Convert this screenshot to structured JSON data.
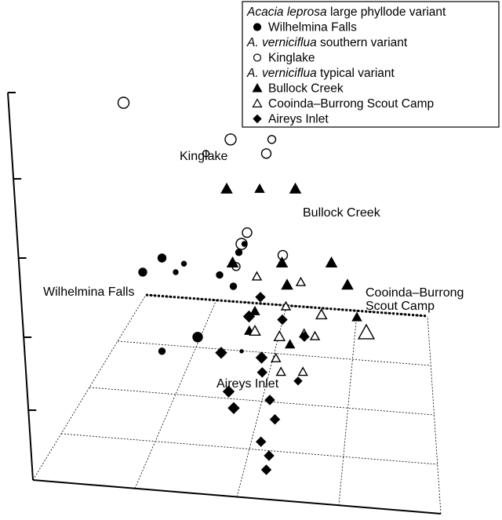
{
  "chart_data": {
    "type": "scatter",
    "projection": "3d-ordination",
    "grid": true,
    "legend_position": "top-right",
    "legend": [
      {
        "group_title": "Acacia leprosa",
        "group_suffix": " large phyllode variant",
        "entries": [
          {
            "symbol": "filled-circle",
            "label": "Wilhelmina Falls"
          }
        ]
      },
      {
        "group_title": "A. verniciflua",
        "group_suffix": " southern variant",
        "entries": [
          {
            "symbol": "open-circle",
            "label": "Kinglake"
          }
        ]
      },
      {
        "group_title": "A. verniciflua",
        "group_suffix": " typical variant",
        "entries": [
          {
            "symbol": "filled-triangle",
            "label": "Bullock Creek"
          },
          {
            "symbol": "open-triangle",
            "label": "Cooinda–Burrong Scout Camp"
          },
          {
            "symbol": "filled-diamond",
            "label": "Aireys Inlet"
          }
        ]
      }
    ],
    "annotations": [
      {
        "id": "kinglake",
        "lines": [
          "Kinglake"
        ]
      },
      {
        "id": "bullock",
        "lines": [
          "Bullock Creek"
        ]
      },
      {
        "id": "wilhelmina",
        "lines": [
          "Wilhelmina Falls"
        ]
      },
      {
        "id": "cooinda",
        "lines": [
          "Cooinda–Burrong",
          "Scout Camp"
        ]
      },
      {
        "id": "aireys",
        "lines": [
          "Aireys Inlet"
        ]
      }
    ],
    "series": [
      {
        "name": "Kinglake",
        "symbol": "open-circle",
        "points": [
          [
            0.05,
            0.9,
            0.0,
            7
          ],
          [
            0.44,
            0.77,
            0.0,
            7
          ],
          [
            0.59,
            0.77,
            0.0,
            5
          ],
          [
            0.35,
            0.72,
            0.0,
            4
          ],
          [
            0.57,
            0.72,
            0.0,
            6
          ],
          [
            0.5,
            0.44,
            0.0,
            6
          ],
          [
            0.48,
            0.4,
            0.0,
            7
          ],
          [
            0.46,
            0.32,
            0.0,
            5
          ],
          [
            0.63,
            0.36,
            0.0,
            6
          ]
        ]
      },
      {
        "name": "Wilhelmina Falls",
        "symbol": "filled-circle",
        "points": [
          [
            0.27,
            0.33,
            0.0,
            3
          ],
          [
            0.32,
            0.07,
            0.0,
            6
          ],
          [
            0.45,
            0.25,
            0.0,
            4
          ],
          [
            0.49,
            0.4,
            0.0,
            3
          ],
          [
            0.19,
            0.35,
            0.0,
            5
          ],
          [
            0.24,
            0.3,
            0.0,
            3
          ],
          [
            0.47,
            0.37,
            0.0,
            4
          ],
          [
            0.12,
            0.3,
            0.0,
            5
          ],
          [
            0.4,
            0.29,
            0.0,
            4
          ],
          [
            0.19,
            0.02,
            0.0,
            4
          ],
          [
            0.48,
            0.02,
            0.0,
            2
          ]
        ]
      },
      {
        "name": "Bullock Creek",
        "symbol": "filled-triangle",
        "points": [
          [
            0.4,
            0.62,
            0.9,
            6
          ],
          [
            0.52,
            0.62,
            0.9,
            5
          ],
          [
            0.65,
            0.62,
            0.9,
            6
          ],
          [
            0.43,
            0.35,
            0.6,
            6
          ],
          [
            0.61,
            0.35,
            0.6,
            6
          ],
          [
            0.79,
            0.35,
            0.6,
            6
          ],
          [
            0.63,
            0.27,
            0.55,
            6
          ],
          [
            0.85,
            0.27,
            0.55,
            6
          ],
          [
            0.89,
            0.15,
            0.35,
            5
          ],
          [
            0.5,
            0.1,
            0.28,
            5
          ],
          [
            0.52,
            0.17,
            0.3,
            5
          ],
          [
            0.65,
            0.05,
            0.22,
            5
          ]
        ]
      },
      {
        "name": "Cooinda–Burrong Scout Camp",
        "symbol": "open-triangle",
        "points": [
          [
            0.52,
            0.3,
            0.55,
            5
          ],
          [
            0.68,
            0.28,
            0.55,
            5
          ],
          [
            0.63,
            0.19,
            0.4,
            5
          ],
          [
            0.76,
            0.16,
            0.38,
            6
          ],
          [
            0.52,
            0.1,
            0.3,
            6
          ],
          [
            0.61,
            0.08,
            0.28,
            6
          ],
          [
            0.7,
            0.09,
            0.27,
            5
          ],
          [
            0.74,
            0.08,
            0.25,
            5
          ],
          [
            0.6,
            0.0,
            0.18,
            5
          ],
          [
            0.62,
            -0.05,
            0.12,
            5
          ],
          [
            0.7,
            -0.05,
            0.12,
            5
          ],
          [
            0.92,
            0.1,
            0.5,
            9
          ]
        ]
      },
      {
        "name": "Aireys Inlet",
        "symbol": "filled-diamond",
        "points": [
          [
            0.54,
            0.22,
            0.3,
            6
          ],
          [
            0.5,
            0.15,
            0.25,
            7
          ],
          [
            0.62,
            0.14,
            0.3,
            6
          ],
          [
            0.7,
            0.08,
            0.3,
            6
          ],
          [
            0.4,
            0.02,
            0.2,
            7
          ],
          [
            0.55,
            -0.05,
            0.18,
            6
          ],
          [
            0.68,
            -0.08,
            0.2,
            5
          ],
          [
            0.55,
            0.0,
            0.1,
            7
          ],
          [
            0.43,
            -0.12,
            0.1,
            7
          ],
          [
            0.58,
            -0.15,
            0.1,
            6
          ],
          [
            0.45,
            -0.18,
            0.05,
            7
          ],
          [
            0.6,
            -0.22,
            0.05,
            6
          ],
          [
            0.55,
            -0.3,
            0.02,
            6
          ],
          [
            0.58,
            -0.35,
            0.0,
            6
          ],
          [
            0.57,
            -0.4,
            0.0,
            6
          ]
        ]
      }
    ]
  }
}
